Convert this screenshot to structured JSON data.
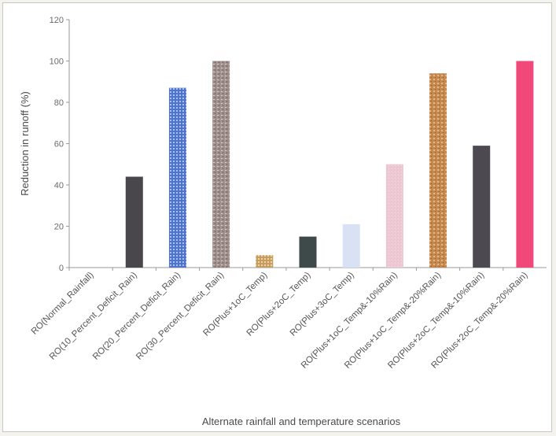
{
  "chart_data": {
    "type": "bar",
    "title": "",
    "xlabel": "Alternate rainfall and temperature scenarios",
    "ylabel": "Reduction in runoff (%)",
    "ylim": [
      0,
      120
    ],
    "yticks": [
      0,
      20,
      40,
      60,
      80,
      100,
      120
    ],
    "grid": false,
    "legend": "none",
    "categories": [
      "RO(Normal_Rainfall)",
      "RO(10_Percent_Deficit_Rain)",
      "RO(20_Percent_Deficit_Rain)",
      "RO(30_Percent_Deficit_Rain)",
      "RO(Plus+1oC_Temp)",
      "RO(Plus+2oC_Temp)",
      "RO(Plus+3oC_Temp)",
      "RO(Plus+1oC_Temp&-10%Rain)",
      "RO(Plus+1oC_Temp&-20%Rain)",
      "RO(Plus+2oC_Temp&-10%Rain)",
      "RO(Plus+2oC_Temp&-20%Rain)"
    ],
    "values": [
      0,
      44,
      87,
      100,
      6,
      15,
      21,
      50,
      94,
      59,
      100
    ],
    "colors": [
      "#9a9a9a",
      "#4a474c",
      "#5b7fd2",
      "#a89a96",
      "#c8a468",
      "#3e4a4a",
      "#d8e2f4",
      "#ecc8d2",
      "#c8925a",
      "#4c4a50",
      "#f04878"
    ]
  }
}
